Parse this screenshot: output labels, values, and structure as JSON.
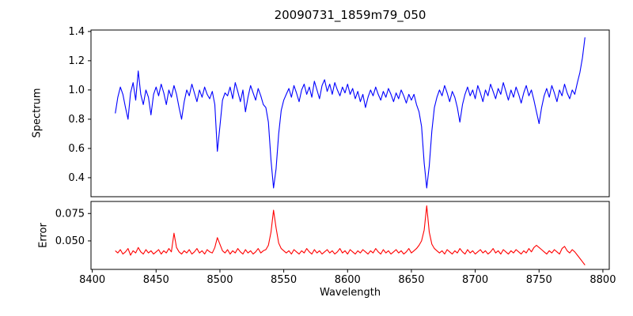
{
  "chart_data": {
    "type": "line",
    "title": "20090731_1859m79_050",
    "xlabel": "Wavelength",
    "grid": false,
    "legend": "none",
    "x_start": 8418,
    "x_step": 2,
    "xlim": [
      8399,
      8805
    ],
    "x_ticks": [
      8400,
      8450,
      8500,
      8550,
      8600,
      8650,
      8700,
      8750,
      8800
    ],
    "panels": [
      {
        "name": "spectrum",
        "ylabel": "Spectrum",
        "line_color": "#0000ff",
        "ylim": [
          0.27,
          1.41
        ],
        "y_tick_values": [
          0.4,
          0.6,
          0.8,
          1.0,
          1.2,
          1.4
        ],
        "y_tick_labels": [
          "0.4",
          "0.6",
          "0.8",
          "1.0",
          "1.2",
          "1.4"
        ],
        "values": [
          0.84,
          0.95,
          1.02,
          0.97,
          0.88,
          0.8,
          0.98,
          1.05,
          0.93,
          1.13,
          0.97,
          0.9,
          1.0,
          0.95,
          0.83,
          0.97,
          1.02,
          0.96,
          1.04,
          0.98,
          0.9,
          1.0,
          0.95,
          1.03,
          0.97,
          0.88,
          0.8,
          0.92,
          1.0,
          0.96,
          1.04,
          0.98,
          0.92,
          1.0,
          0.95,
          1.02,
          0.97,
          0.94,
          0.99,
          0.9,
          0.58,
          0.75,
          0.93,
          0.98,
          0.96,
          1.02,
          0.94,
          1.05,
          0.99,
          0.92,
          1.0,
          0.85,
          0.95,
          1.03,
          0.98,
          0.93,
          1.01,
          0.96,
          0.9,
          0.88,
          0.78,
          0.52,
          0.33,
          0.46,
          0.7,
          0.86,
          0.93,
          0.97,
          1.01,
          0.95,
          1.03,
          0.98,
          0.92,
          1.0,
          1.04,
          0.97,
          1.02,
          0.95,
          1.06,
          1.0,
          0.94,
          1.03,
          1.07,
          0.99,
          1.04,
          0.97,
          1.05,
          1.0,
          0.96,
          1.02,
          0.98,
          1.04,
          0.97,
          1.01,
          0.94,
          0.99,
          0.92,
          0.97,
          0.88,
          0.95,
          1.0,
          0.96,
          1.02,
          0.97,
          0.93,
          0.99,
          0.95,
          1.01,
          0.97,
          0.92,
          0.98,
          0.94,
          1.0,
          0.96,
          0.91,
          0.97,
          0.93,
          0.97,
          0.9,
          0.85,
          0.75,
          0.5,
          0.33,
          0.48,
          0.72,
          0.88,
          0.95,
          1.0,
          0.96,
          1.03,
          0.98,
          0.92,
          0.99,
          0.95,
          0.88,
          0.78,
          0.9,
          0.97,
          1.02,
          0.96,
          1.0,
          0.94,
          1.03,
          0.98,
          0.92,
          1.0,
          0.96,
          1.04,
          0.99,
          0.94,
          1.01,
          0.97,
          1.05,
          0.99,
          0.93,
          1.0,
          0.95,
          1.02,
          0.97,
          0.91,
          0.98,
          1.03,
          0.96,
          1.0,
          0.93,
          0.85,
          0.77,
          0.88,
          0.96,
          1.01,
          0.95,
          1.03,
          0.98,
          0.92,
          1.0,
          0.96,
          1.04,
          0.98,
          0.94,
          1.0,
          0.97,
          1.05,
          1.12,
          1.22,
          1.36
        ]
      },
      {
        "name": "error",
        "ylabel": "Error",
        "line_color": "#ff0000",
        "ylim": [
          0.024,
          0.086
        ],
        "y_tick_values": [
          0.05,
          0.075
        ],
        "y_tick_labels": [
          "0.050",
          "0.075"
        ],
        "values": [
          0.041,
          0.039,
          0.042,
          0.038,
          0.04,
          0.043,
          0.037,
          0.041,
          0.039,
          0.044,
          0.04,
          0.038,
          0.042,
          0.039,
          0.041,
          0.038,
          0.04,
          0.042,
          0.038,
          0.041,
          0.039,
          0.043,
          0.04,
          0.057,
          0.044,
          0.04,
          0.038,
          0.041,
          0.039,
          0.042,
          0.038,
          0.04,
          0.043,
          0.039,
          0.041,
          0.038,
          0.042,
          0.04,
          0.039,
          0.044,
          0.053,
          0.047,
          0.041,
          0.039,
          0.042,
          0.038,
          0.041,
          0.039,
          0.043,
          0.04,
          0.038,
          0.042,
          0.039,
          0.041,
          0.038,
          0.04,
          0.043,
          0.039,
          0.041,
          0.042,
          0.046,
          0.058,
          0.078,
          0.062,
          0.048,
          0.043,
          0.041,
          0.039,
          0.041,
          0.038,
          0.042,
          0.04,
          0.038,
          0.041,
          0.039,
          0.043,
          0.04,
          0.038,
          0.042,
          0.039,
          0.041,
          0.038,
          0.04,
          0.042,
          0.039,
          0.041,
          0.038,
          0.04,
          0.043,
          0.039,
          0.041,
          0.038,
          0.042,
          0.04,
          0.038,
          0.041,
          0.039,
          0.042,
          0.04,
          0.038,
          0.041,
          0.039,
          0.043,
          0.04,
          0.038,
          0.042,
          0.039,
          0.041,
          0.038,
          0.04,
          0.042,
          0.039,
          0.041,
          0.038,
          0.04,
          0.043,
          0.039,
          0.041,
          0.043,
          0.046,
          0.05,
          0.06,
          0.082,
          0.058,
          0.047,
          0.043,
          0.041,
          0.039,
          0.041,
          0.038,
          0.042,
          0.04,
          0.038,
          0.041,
          0.039,
          0.043,
          0.04,
          0.038,
          0.042,
          0.039,
          0.041,
          0.038,
          0.04,
          0.042,
          0.039,
          0.041,
          0.038,
          0.04,
          0.043,
          0.039,
          0.041,
          0.038,
          0.042,
          0.04,
          0.038,
          0.041,
          0.039,
          0.042,
          0.04,
          0.038,
          0.041,
          0.039,
          0.043,
          0.04,
          0.044,
          0.046,
          0.044,
          0.042,
          0.04,
          0.038,
          0.041,
          0.039,
          0.042,
          0.04,
          0.038,
          0.043,
          0.045,
          0.041,
          0.039,
          0.042,
          0.04,
          0.037,
          0.034,
          0.031,
          0.028
        ]
      }
    ]
  }
}
